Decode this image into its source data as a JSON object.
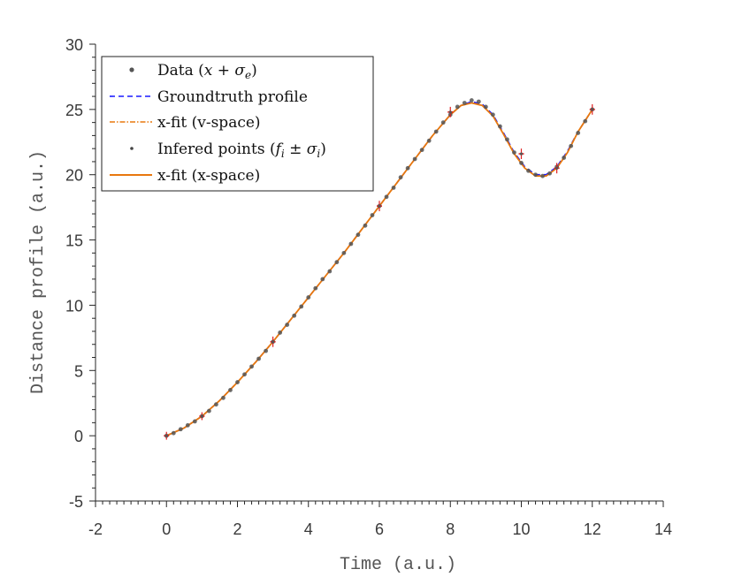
{
  "chart_data": {
    "type": "line",
    "xlabel": "Time (a.u.)",
    "ylabel": "Distance profile (a.u.)",
    "xlim": [
      -2,
      14
    ],
    "ylim": [
      -5,
      30
    ],
    "xticks": [
      "-2",
      "0",
      "2",
      "4",
      "6",
      "8",
      "10",
      "12",
      "14"
    ],
    "yticks": [
      "-5",
      "0",
      "5",
      "10",
      "15",
      "20",
      "25",
      "30"
    ],
    "grid": false,
    "legend_position": "top-left",
    "legend": [
      {
        "label_prefix": "Data (",
        "label_math": "x + σ",
        "label_sub": "e",
        "label_suffix": ")",
        "style": "marker",
        "color": "#555555"
      },
      {
        "label": "Groundtruth profile",
        "style": "dashed",
        "color": "#1a1aff"
      },
      {
        "label": "x-fit (v-space)",
        "style": "dashdot",
        "color": "#e8780e"
      },
      {
        "label_prefix": "Infered points (",
        "label_math": "f",
        "label_sub": "i",
        "label_math2": " ± σ",
        "label_sub2": "i",
        "label_suffix": ")",
        "style": "marker",
        "color": "#555555"
      },
      {
        "label": "x-fit (x-space)",
        "style": "solid",
        "color": "#e8780e"
      }
    ],
    "series": [
      {
        "name": "Groundtruth profile",
        "color": "#1a1aff",
        "x": [
          0,
          0.5,
          1,
          1.5,
          2,
          2.5,
          3,
          3.5,
          4,
          4.5,
          5,
          5.5,
          6,
          6.5,
          7,
          7.5,
          8,
          8.3,
          8.6,
          8.9,
          9.2,
          9.5,
          9.8,
          10.1,
          10.4,
          10.7,
          11.0,
          11.3,
          11.6,
          12
        ],
        "y": [
          0,
          0.6,
          1.5,
          2.7,
          4.1,
          5.6,
          7.2,
          8.9,
          10.6,
          12.3,
          14.0,
          15.8,
          17.6,
          19.4,
          21.2,
          23.0,
          24.6,
          25.3,
          25.6,
          25.4,
          24.6,
          23.2,
          21.7,
          20.6,
          20.0,
          20.0,
          20.6,
          21.8,
          23.3,
          25.0
        ]
      },
      {
        "name": "x-fit (v-space)",
        "color": "#e8780e",
        "x": [
          0,
          0.5,
          1,
          1.5,
          2,
          2.5,
          3,
          3.5,
          4,
          4.5,
          5,
          5.5,
          6,
          6.5,
          7,
          7.5,
          8,
          8.3,
          8.6,
          8.9,
          9.2,
          9.5,
          9.8,
          10.1,
          10.4,
          10.7,
          11.0,
          11.3,
          11.6,
          12
        ],
        "y": [
          0,
          0.6,
          1.5,
          2.7,
          4.1,
          5.6,
          7.2,
          8.9,
          10.6,
          12.3,
          14.0,
          15.8,
          17.6,
          19.4,
          21.2,
          23.0,
          24.6,
          25.3,
          25.5,
          25.3,
          24.5,
          23.1,
          21.6,
          20.5,
          19.9,
          19.9,
          20.5,
          21.7,
          23.3,
          25.0
        ]
      },
      {
        "name": "x-fit (x-space)",
        "color": "#e8780e",
        "x": [
          0,
          0.5,
          1,
          1.5,
          2,
          2.5,
          3,
          3.5,
          4,
          4.5,
          5,
          5.5,
          6,
          6.5,
          7,
          7.5,
          8,
          8.3,
          8.6,
          8.9,
          9.2,
          9.5,
          9.8,
          10.1,
          10.4,
          10.7,
          11.0,
          11.3,
          11.6,
          12
        ],
        "y": [
          0,
          0.6,
          1.5,
          2.7,
          4.1,
          5.6,
          7.2,
          8.9,
          10.6,
          12.3,
          14.0,
          15.8,
          17.6,
          19.4,
          21.2,
          23.0,
          24.6,
          25.3,
          25.5,
          25.3,
          24.5,
          23.1,
          21.6,
          20.5,
          19.9,
          19.9,
          20.5,
          21.7,
          23.3,
          25.0
        ]
      }
    ],
    "data_points": {
      "name": "Data",
      "color": "#555555",
      "x": [
        0,
        0.2,
        0.4,
        0.6,
        0.8,
        1.0,
        1.2,
        1.4,
        1.6,
        1.8,
        2.0,
        2.2,
        2.4,
        2.6,
        2.8,
        3.0,
        3.2,
        3.4,
        3.6,
        3.8,
        4.0,
        4.2,
        4.4,
        4.6,
        4.8,
        5.0,
        5.2,
        5.4,
        5.6,
        5.8,
        6.0,
        6.2,
        6.4,
        6.6,
        6.8,
        7.0,
        7.2,
        7.4,
        7.6,
        7.8,
        8.0,
        8.2,
        8.4,
        8.6,
        8.8,
        9.0,
        9.2,
        9.4,
        9.6,
        9.8,
        10.0,
        10.2,
        10.4,
        10.6,
        10.8,
        11.0,
        11.2,
        11.4,
        11.6,
        11.8,
        12.0
      ],
      "y": [
        0,
        0.2,
        0.5,
        0.8,
        1.1,
        1.5,
        1.9,
        2.4,
        2.9,
        3.5,
        4.1,
        4.7,
        5.3,
        5.9,
        6.5,
        7.2,
        7.9,
        8.5,
        9.2,
        9.9,
        10.6,
        11.3,
        12.0,
        12.6,
        13.3,
        14.0,
        14.7,
        15.4,
        16.1,
        16.9,
        17.6,
        18.3,
        19.0,
        19.8,
        20.5,
        21.2,
        21.9,
        22.6,
        23.3,
        24.0,
        24.6,
        25.2,
        25.5,
        25.7,
        25.6,
        25.2,
        24.6,
        23.7,
        22.7,
        21.7,
        20.9,
        20.3,
        20.0,
        19.9,
        20.1,
        20.6,
        21.3,
        22.2,
        23.2,
        24.1,
        25.0
      ]
    },
    "inferred_points": {
      "name": "Infered points",
      "color": "#555555",
      "error_color": "#e02020",
      "x": [
        0,
        1,
        3,
        6,
        8,
        10,
        11,
        12
      ],
      "y": [
        0,
        1.5,
        7.2,
        17.6,
        24.8,
        21.6,
        20.5,
        25.0
      ],
      "err": [
        0.3,
        0.3,
        0.4,
        0.4,
        0.4,
        0.4,
        0.4,
        0.4
      ]
    }
  }
}
